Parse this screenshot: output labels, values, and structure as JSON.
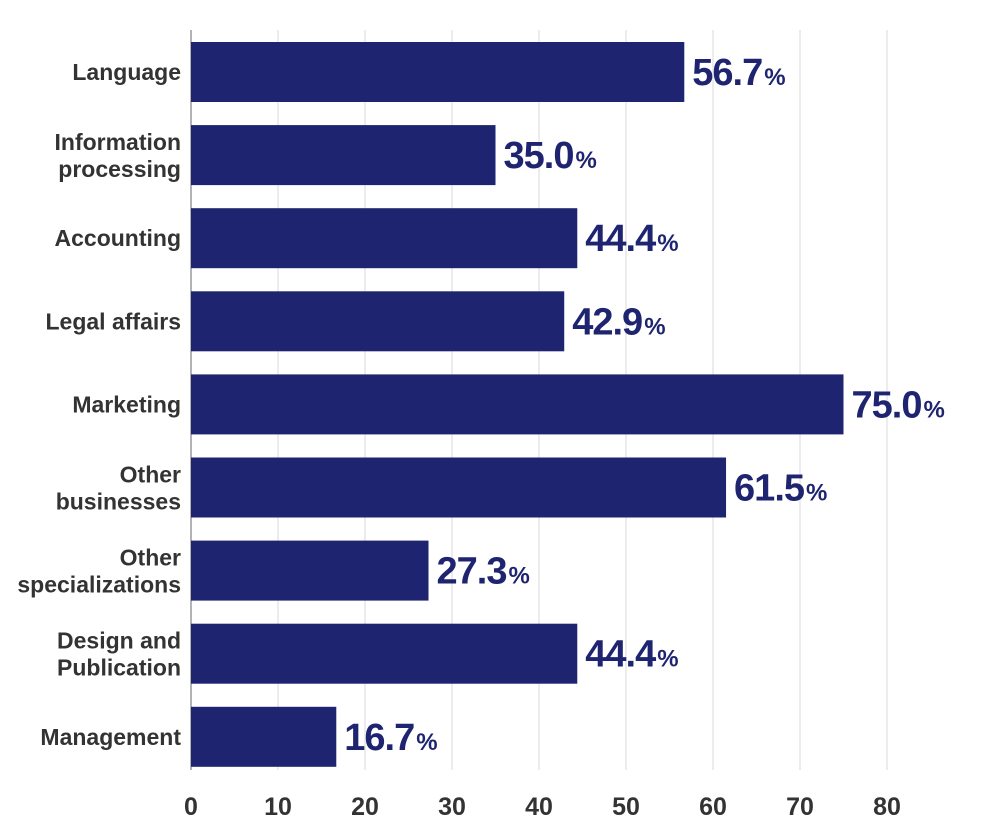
{
  "chart_data": {
    "type": "bar",
    "orientation": "horizontal",
    "categories": [
      [
        "Language"
      ],
      [
        "Information",
        "processing"
      ],
      [
        "Accounting"
      ],
      [
        "Legal affairs"
      ],
      [
        "Marketing"
      ],
      [
        "Other",
        "businesses"
      ],
      [
        "Other",
        "specializations"
      ],
      [
        "Design and",
        "Publication"
      ],
      [
        "Management"
      ]
    ],
    "values": [
      56.7,
      35.0,
      44.4,
      42.9,
      75.0,
      61.5,
      27.3,
      44.4,
      16.7
    ],
    "value_labels": [
      "56.7",
      "35.0",
      "44.4",
      "42.9",
      "75.0",
      "61.5",
      "27.3",
      "44.4",
      "16.7"
    ],
    "value_unit": "%",
    "x_ticks": [
      "0",
      "10",
      "20",
      "30",
      "40",
      "50",
      "60",
      "70",
      "80"
    ],
    "xlim": [
      0,
      80
    ],
    "grid": "vertical",
    "bar_color": "#1e2470",
    "label_color": "#1e2470",
    "grid_color": "#e6e6e6",
    "text_color": "#333333"
  }
}
